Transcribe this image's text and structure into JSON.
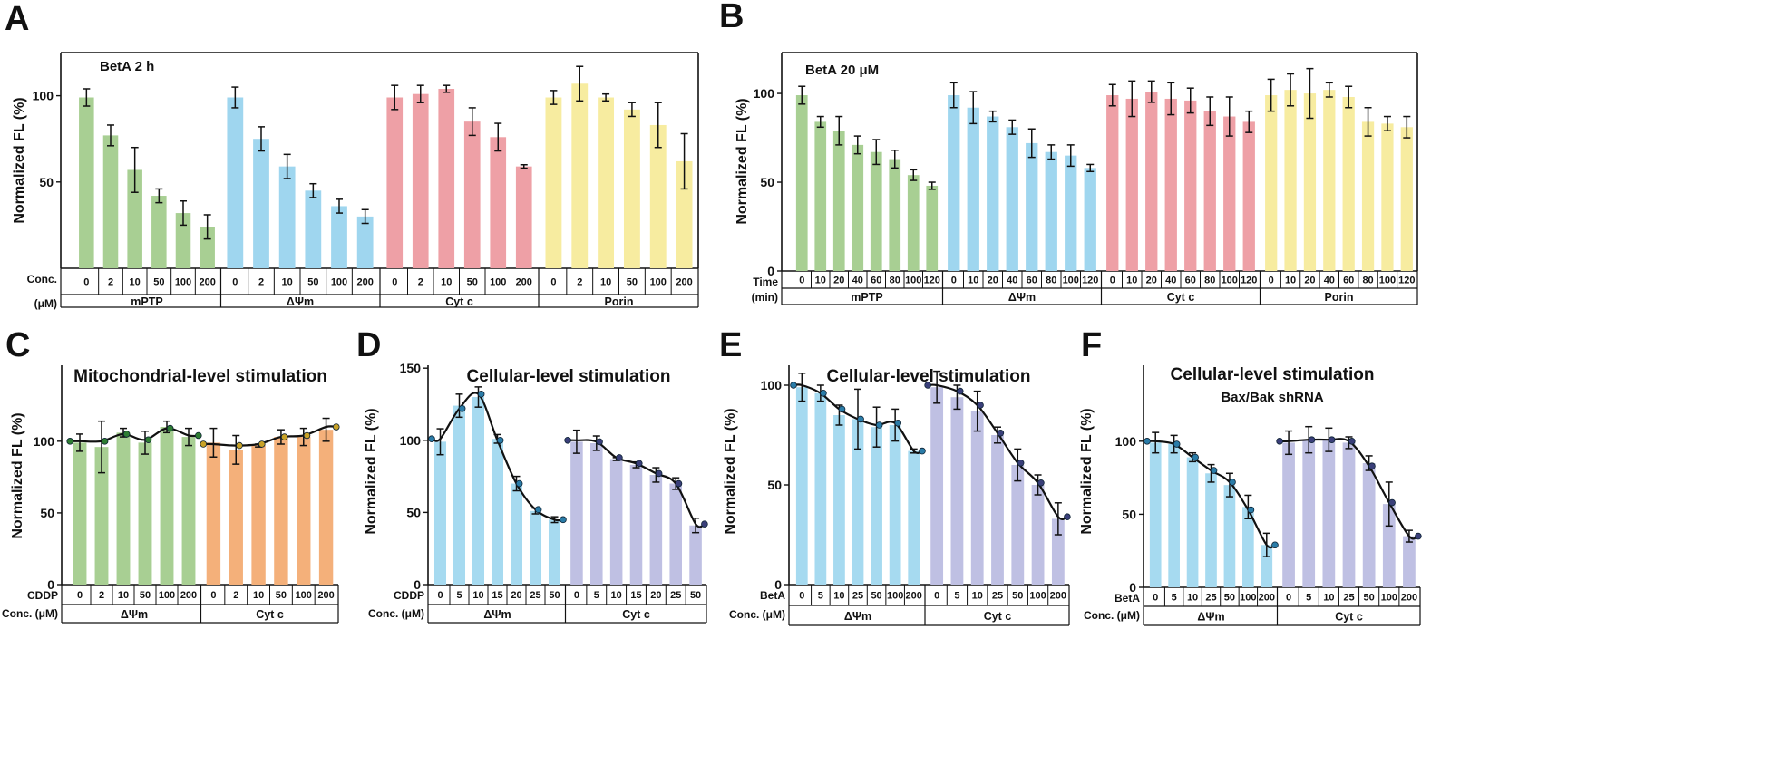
{
  "figure": {
    "panels": [
      {
        "id": "A",
        "letter": "A",
        "inner_title": "BetA 2 h",
        "title": "",
        "ylabel": "Normalized FL (%)",
        "ylim": [
          0,
          125
        ],
        "yticks": [
          50,
          100
        ],
        "row_label_1": "Conc.",
        "row_label_2": "(μM)",
        "groups": [
          {
            "name": "mPTP",
            "color": "#a8cf93",
            "categories": [
              "0",
              "2",
              "10",
              "50",
              "100",
              "200"
            ],
            "values": [
              99,
              77,
              57,
              42,
              32,
              24
            ],
            "errors": [
              5,
              6,
              13,
              4,
              7,
              7
            ]
          },
          {
            "name": "ΔΨm",
            "color": "#9fd6ef",
            "categories": [
              "0",
              "2",
              "10",
              "50",
              "100",
              "200"
            ],
            "values": [
              99,
              75,
              59,
              45,
              36,
              30
            ],
            "errors": [
              6,
              7,
              7,
              4,
              4,
              4
            ]
          },
          {
            "name": "Cyt c",
            "color": "#eea0a6",
            "categories": [
              "0",
              "2",
              "10",
              "50",
              "100",
              "200"
            ],
            "values": [
              99,
              101,
              104,
              85,
              76,
              59
            ],
            "errors": [
              7,
              5,
              2,
              8,
              8,
              1
            ]
          },
          {
            "name": "Porin",
            "color": "#f7eca0",
            "categories": [
              "0",
              "2",
              "10",
              "50",
              "100",
              "200"
            ],
            "values": [
              99,
              107,
              99,
              92,
              83,
              62
            ],
            "errors": [
              4,
              10,
              2,
              4,
              13,
              16
            ]
          }
        ]
      },
      {
        "id": "B",
        "letter": "B",
        "inner_title": "BetA 20 μM",
        "title": "",
        "ylabel": "Normalized FL (%)",
        "ylim": [
          0,
          123
        ],
        "yticks": [
          0,
          50,
          100
        ],
        "row_label_1": "Time",
        "row_label_2": "(min)",
        "groups": [
          {
            "name": "mPTP",
            "color": "#a8cf93",
            "categories": [
              "0",
              "10",
              "20",
              "40",
              "60",
              "80",
              "100",
              "120"
            ],
            "values": [
              99,
              84,
              79,
              71,
              67,
              63,
              54,
              48
            ],
            "errors": [
              5,
              3,
              8,
              5,
              7,
              5,
              3,
              2
            ]
          },
          {
            "name": "ΔΨm",
            "color": "#9fd6ef",
            "categories": [
              "0",
              "10",
              "20",
              "40",
              "60",
              "80",
              "100",
              "120"
            ],
            "values": [
              99,
              92,
              87,
              81,
              72,
              67,
              65,
              58
            ],
            "errors": [
              7,
              9,
              3,
              4,
              8,
              4,
              6,
              2
            ]
          },
          {
            "name": "Cyt c",
            "color": "#eea0a6",
            "categories": [
              "0",
              "10",
              "20",
              "40",
              "60",
              "80",
              "100",
              "120"
            ],
            "values": [
              99,
              97,
              101,
              97,
              96,
              90,
              87,
              84
            ],
            "errors": [
              6,
              10,
              6,
              9,
              7,
              8,
              11,
              6
            ]
          },
          {
            "name": "Porin",
            "color": "#f7eca0",
            "categories": [
              "0",
              "10",
              "20",
              "40",
              "60",
              "80",
              "100",
              "120"
            ],
            "values": [
              99,
              102,
              100,
              102,
              98,
              84,
              83,
              81
            ],
            "errors": [
              9,
              9,
              14,
              4,
              6,
              8,
              4,
              6
            ]
          }
        ]
      },
      {
        "id": "C",
        "letter": "C",
        "inner_title": "",
        "title": "Mitochondrial-level stimulation",
        "ylabel": "Normalized FL (%)",
        "ylim": [
          0,
          153
        ],
        "yticks": [
          0,
          50,
          100
        ],
        "row_label_1": "CDDP",
        "row_label_2": "Conc. (μM)",
        "groups": [
          {
            "name": "ΔΨm",
            "color": "#a8cf93",
            "dot_color": "#2e7d32",
            "categories": [
              "0",
              "2",
              "10",
              "50",
              "100",
              "200"
            ],
            "values": [
              99,
              96,
              106,
              99,
              110,
              103
            ],
            "errors": [
              6,
              18,
              3,
              8,
              4,
              6
            ],
            "curve": [
              100,
              100,
              105,
              101,
              109,
              104
            ]
          },
          {
            "name": "Cyt c",
            "color": "#f4b07a",
            "dot_color": "#c9a227",
            "categories": [
              "0",
              "2",
              "10",
              "50",
              "100",
              "200"
            ],
            "values": [
              99,
              94,
              97,
              103,
              103,
              108
            ],
            "errors": [
              10,
              10,
              1,
              5,
              6,
              8
            ],
            "curve": [
              98,
              97,
              98,
              103,
              104,
              110
            ]
          }
        ]
      },
      {
        "id": "D",
        "letter": "D",
        "inner_title": "",
        "title": "Cellular-level stimulation",
        "ylabel": "Normalized FL (%)",
        "ylim": [
          0,
          152
        ],
        "yticks": [
          0,
          50,
          100,
          150
        ],
        "row_label_1": "CDDP",
        "row_label_2": "Conc. (μM)",
        "groups": [
          {
            "name": "ΔΨm",
            "color": "#a6daf0",
            "dot_color": "#2a7ca8",
            "categories": [
              "0",
              "5",
              "10",
              "15",
              "20",
              "25",
              "50"
            ],
            "values": [
              99,
              124,
              130,
              101,
              70,
              51,
              45
            ],
            "errors": [
              9,
              8,
              7,
              3,
              5,
              2,
              2
            ],
            "curve": [
              101,
              122,
              132,
              100,
              70,
              52,
              45
            ]
          },
          {
            "name": "Cyt c",
            "color": "#bfc0e3",
            "dot_color": "#3a3f7a",
            "categories": [
              "0",
              "5",
              "10",
              "15",
              "20",
              "25",
              "50"
            ],
            "values": [
              99,
              98,
              87,
              83,
              76,
              70,
              41
            ],
            "errors": [
              8,
              5,
              1,
              2,
              5,
              4,
              5
            ],
            "curve": [
              100,
              99,
              88,
              84,
              77,
              70,
              42
            ]
          }
        ]
      },
      {
        "id": "E",
        "letter": "E",
        "inner_title": "",
        "title": "Cellular-level stimulation",
        "ylabel": "Normalized FL (%)",
        "ylim": [
          0,
          110
        ],
        "yticks": [
          0,
          50,
          100
        ],
        "row_label_1": "BetA",
        "row_label_2": "Conc. (μM)",
        "groups": [
          {
            "name": "ΔΨm",
            "color": "#a6daf0",
            "dot_color": "#2a7ca8",
            "categories": [
              "0",
              "5",
              "10",
              "25",
              "50",
              "100",
              "200"
            ],
            "values": [
              99,
              96,
              85,
              83,
              79,
              80,
              67
            ],
            "errors": [
              7,
              4,
              5,
              15,
              10,
              8,
              1
            ],
            "curve": [
              100,
              96,
              88,
              83,
              80,
              81,
              67
            ]
          },
          {
            "name": "Cyt c",
            "color": "#bfc0e3",
            "dot_color": "#3a3f7a",
            "categories": [
              "0",
              "5",
              "10",
              "25",
              "50",
              "100",
              "200"
            ],
            "values": [
              99,
              94,
              87,
              75,
              60,
              50,
              33
            ],
            "errors": [
              8,
              6,
              10,
              4,
              8,
              5,
              8
            ],
            "curve": [
              100,
              97,
              90,
              76,
              61,
              51,
              34
            ]
          }
        ]
      },
      {
        "id": "F",
        "letter": "F",
        "inner_title": "",
        "title": "Cellular-level stimulation",
        "subtitle": "Bax/Bak shRNA",
        "ylabel": "Normalized FL (%)",
        "ylim": [
          0,
          152
        ],
        "yticks": [
          0,
          50,
          100
        ],
        "row_label_1": "BetA",
        "row_label_2": "Conc. (μM)",
        "groups": [
          {
            "name": "ΔΨm",
            "color": "#a6daf0",
            "dot_color": "#2a7ca8",
            "categories": [
              "0",
              "5",
              "10",
              "25",
              "50",
              "100",
              "200"
            ],
            "values": [
              99,
              98,
              89,
              78,
              70,
              55,
              29
            ],
            "errors": [
              7,
              6,
              3,
              6,
              8,
              8,
              8
            ],
            "curve": [
              100,
              98,
              89,
              80,
              72,
              53,
              29
            ]
          },
          {
            "name": "Cyt c",
            "color": "#bfc0e3",
            "dot_color": "#3a3f7a",
            "categories": [
              "0",
              "5",
              "10",
              "25",
              "50",
              "100",
              "200"
            ],
            "values": [
              99,
              101,
              101,
              99,
              85,
              57,
              35
            ],
            "errors": [
              8,
              9,
              8,
              4,
              5,
              15,
              4
            ],
            "curve": [
              100,
              101,
              101,
              100,
              83,
              58,
              35
            ]
          }
        ]
      }
    ]
  },
  "chart_data": [
    {
      "panel": "A",
      "type": "bar",
      "title": "BetA 2 h",
      "ylabel": "Normalized FL (%)",
      "xlabel": "Conc. (μM)",
      "ylim": [
        0,
        125
      ],
      "categories": [
        "0",
        "2",
        "10",
        "50",
        "100",
        "200"
      ],
      "series": [
        {
          "name": "mPTP",
          "values": [
            99,
            77,
            57,
            42,
            32,
            24
          ]
        },
        {
          "name": "ΔΨm",
          "values": [
            99,
            75,
            59,
            45,
            36,
            30
          ]
        },
        {
          "name": "Cyt c",
          "values": [
            99,
            101,
            104,
            85,
            76,
            59
          ]
        },
        {
          "name": "Porin",
          "values": [
            99,
            107,
            99,
            92,
            83,
            62
          ]
        }
      ]
    },
    {
      "panel": "B",
      "type": "bar",
      "title": "BetA 20 μM",
      "ylabel": "Normalized FL (%)",
      "xlabel": "Time (min)",
      "ylim": [
        0,
        123
      ],
      "categories": [
        "0",
        "10",
        "20",
        "40",
        "60",
        "80",
        "100",
        "120"
      ],
      "series": [
        {
          "name": "mPTP",
          "values": [
            99,
            84,
            79,
            71,
            67,
            63,
            54,
            48
          ]
        },
        {
          "name": "ΔΨm",
          "values": [
            99,
            92,
            87,
            81,
            72,
            67,
            65,
            58
          ]
        },
        {
          "name": "Cyt c",
          "values": [
            99,
            97,
            101,
            97,
            96,
            90,
            87,
            84
          ]
        },
        {
          "name": "Porin",
          "values": [
            99,
            102,
            100,
            102,
            98,
            84,
            83,
            81
          ]
        }
      ]
    },
    {
      "panel": "C",
      "type": "bar",
      "title": "Mitochondrial-level stimulation",
      "ylabel": "Normalized FL (%)",
      "xlabel": "CDDP Conc. (μM)",
      "ylim": [
        0,
        153
      ],
      "categories": [
        "0",
        "2",
        "10",
        "50",
        "100",
        "200"
      ],
      "series": [
        {
          "name": "ΔΨm",
          "values": [
            99,
            96,
            106,
            99,
            110,
            103
          ]
        },
        {
          "name": "Cyt c",
          "values": [
            99,
            94,
            97,
            103,
            103,
            108
          ]
        }
      ]
    },
    {
      "panel": "D",
      "type": "bar",
      "title": "Cellular-level stimulation",
      "ylabel": "Normalized FL (%)",
      "xlabel": "CDDP Conc. (μM)",
      "ylim": [
        0,
        152
      ],
      "categories": [
        "0",
        "5",
        "10",
        "15",
        "20",
        "25",
        "50"
      ],
      "series": [
        {
          "name": "ΔΨm",
          "values": [
            99,
            124,
            130,
            101,
            70,
            51,
            45
          ]
        },
        {
          "name": "Cyt c",
          "values": [
            99,
            98,
            87,
            83,
            76,
            70,
            41
          ]
        }
      ]
    },
    {
      "panel": "E",
      "type": "bar",
      "title": "Cellular-level stimulation",
      "ylabel": "Normalized FL (%)",
      "xlabel": "BetA Conc. (μM)",
      "ylim": [
        0,
        110
      ],
      "categories": [
        "0",
        "5",
        "10",
        "25",
        "50",
        "100",
        "200"
      ],
      "series": [
        {
          "name": "ΔΨm",
          "values": [
            99,
            96,
            85,
            83,
            79,
            80,
            67
          ]
        },
        {
          "name": "Cyt c",
          "values": [
            99,
            94,
            87,
            75,
            60,
            50,
            33
          ]
        }
      ]
    },
    {
      "panel": "F",
      "type": "bar",
      "title": "Cellular-level stimulation",
      "subtitle": "Bax/Bak shRNA",
      "ylabel": "Normalized FL (%)",
      "xlabel": "BetA Conc. (μM)",
      "ylim": [
        0,
        152
      ],
      "categories": [
        "0",
        "5",
        "10",
        "25",
        "50",
        "100",
        "200"
      ],
      "series": [
        {
          "name": "ΔΨm",
          "values": [
            99,
            98,
            89,
            78,
            70,
            55,
            29
          ]
        },
        {
          "name": "Cyt c",
          "values": [
            99,
            101,
            101,
            99,
            85,
            57,
            35
          ]
        }
      ]
    }
  ]
}
